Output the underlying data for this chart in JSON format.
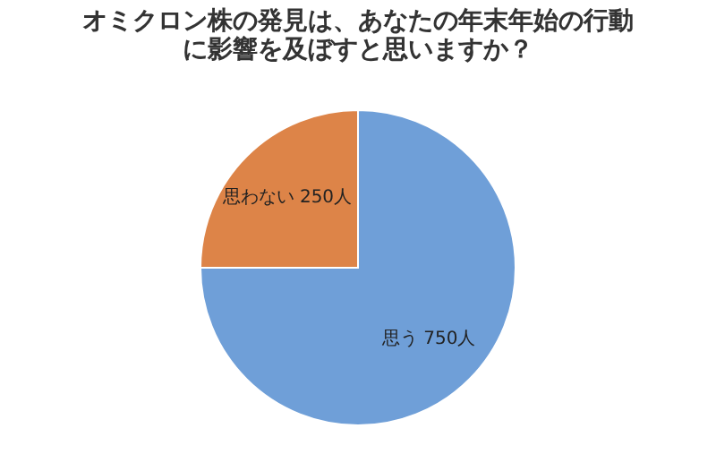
{
  "chart_data": {
    "type": "pie",
    "title": "オミクロン株の発見は、あなたの年末年始の行動に影響を及ぼすと思いますか？",
    "categories": [
      "思う",
      "思わない"
    ],
    "values": [
      750,
      250
    ],
    "colors": [
      "#6f9fd8",
      "#dd8448"
    ],
    "value_labels": [
      "750人",
      "250人"
    ],
    "legend": false
  }
}
